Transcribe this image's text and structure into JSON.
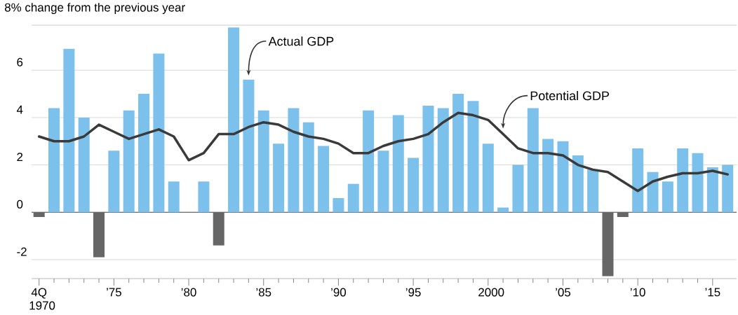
{
  "chart_data": {
    "type": "bar",
    "title": "8% change from the previous year",
    "x": [
      1970,
      1971,
      1972,
      1973,
      1974,
      1975,
      1976,
      1977,
      1978,
      1979,
      1980,
      1981,
      1982,
      1983,
      1984,
      1985,
      1986,
      1987,
      1988,
      1989,
      1990,
      1991,
      1992,
      1993,
      1994,
      1995,
      1996,
      1997,
      1998,
      1999,
      2000,
      2001,
      2002,
      2003,
      2004,
      2005,
      2006,
      2007,
      2008,
      2009,
      2010,
      2011,
      2012,
      2013,
      2014,
      2015,
      2016
    ],
    "series": [
      {
        "name": "Actual GDP",
        "values": [
          -0.2,
          4.4,
          6.9,
          4.0,
          -1.9,
          2.6,
          4.3,
          5.0,
          6.7,
          1.3,
          0,
          1.3,
          -1.4,
          7.8,
          5.6,
          4.3,
          2.9,
          4.4,
          3.8,
          2.8,
          0.6,
          1.2,
          4.3,
          2.6,
          4.1,
          2.3,
          4.5,
          4.4,
          5.0,
          4.7,
          2.9,
          0.2,
          2.0,
          4.4,
          3.1,
          3.0,
          2.4,
          1.8,
          -2.7,
          -0.2,
          2.7,
          1.7,
          1.3,
          2.7,
          2.5,
          1.9,
          2.0
        ],
        "colors": [
          "#666666",
          "#7cc0ec",
          "#7cc0ec",
          "#7cc0ec",
          "#666666",
          "#7cc0ec",
          "#7cc0ec",
          "#7cc0ec",
          "#7cc0ec",
          "#7cc0ec",
          "#7cc0ec",
          "#7cc0ec",
          "#666666",
          "#7cc0ec",
          "#7cc0ec",
          "#7cc0ec",
          "#7cc0ec",
          "#7cc0ec",
          "#7cc0ec",
          "#7cc0ec",
          "#7cc0ec",
          "#7cc0ec",
          "#7cc0ec",
          "#7cc0ec",
          "#7cc0ec",
          "#7cc0ec",
          "#7cc0ec",
          "#7cc0ec",
          "#7cc0ec",
          "#7cc0ec",
          "#7cc0ec",
          "#7cc0ec",
          "#7cc0ec",
          "#7cc0ec",
          "#7cc0ec",
          "#7cc0ec",
          "#7cc0ec",
          "#7cc0ec",
          "#666666",
          "#666666",
          "#7cc0ec",
          "#7cc0ec",
          "#7cc0ec",
          "#7cc0ec",
          "#7cc0ec",
          "#7cc0ec",
          "#7cc0ec"
        ]
      },
      {
        "name": "Potential GDP",
        "type": "line",
        "color": "#3a3a3a",
        "values": [
          3.2,
          3.0,
          3.0,
          3.2,
          3.7,
          3.4,
          3.1,
          3.3,
          3.5,
          3.2,
          2.2,
          2.5,
          3.3,
          3.3,
          3.6,
          3.8,
          3.7,
          3.4,
          3.2,
          3.1,
          2.9,
          2.5,
          2.5,
          2.8,
          3.0,
          3.1,
          3.3,
          3.8,
          4.2,
          4.1,
          3.9,
          3.3,
          2.7,
          2.5,
          2.5,
          2.4,
          2.0,
          1.8,
          1.7,
          1.3,
          0.9,
          1.3,
          1.5,
          1.65,
          1.65,
          1.75,
          1.6
        ]
      }
    ],
    "xlim": [
      1969.5,
      2016.6
    ],
    "xticks": [
      {
        "value": 1970,
        "label": "4Q 1970"
      },
      {
        "value": 1975,
        "label": "’75"
      },
      {
        "value": 1980,
        "label": "’80"
      },
      {
        "value": 1985,
        "label": "’85"
      },
      {
        "value": 1990,
        "label": "’90"
      },
      {
        "value": 1995,
        "label": "’95"
      },
      {
        "value": 2000,
        "label": "2000"
      },
      {
        "value": 2005,
        "label": "’05"
      },
      {
        "value": 2010,
        "label": "’10"
      },
      {
        "value": 2015,
        "label": "’15"
      }
    ],
    "ylim": [
      -2.8,
      7.9
    ],
    "yticks": [
      -2,
      0,
      2,
      4,
      6
    ],
    "grid": "y",
    "line_style": "solid",
    "marker": "none"
  }
}
